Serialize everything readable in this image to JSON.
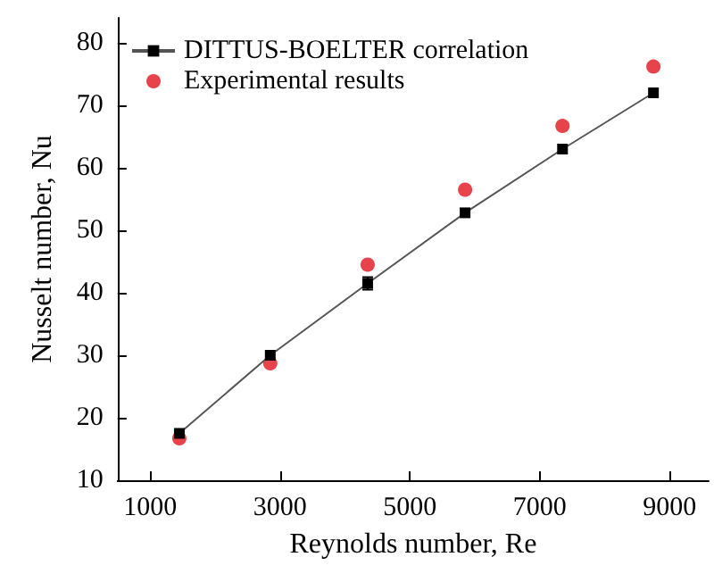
{
  "chart_data": {
    "type": "line",
    "xlabel": "Reynolds number, Re",
    "ylabel": "Nusselt number, Nu",
    "x": [
      1450,
      2850,
      4350,
      5850,
      7350,
      8750
    ],
    "series": [
      {
        "name": "DITTUS-BOELTER correlation",
        "color": "#000000",
        "marker": "square",
        "values": [
          17.5,
          30,
          41.5,
          52.8,
          63,
          72
        ],
        "errors": [
          null,
          null,
          1,
          null,
          null,
          null
        ]
      },
      {
        "name": "Experimental results",
        "type": "scatter",
        "color": "#e0141e",
        "marker": "circle",
        "values": [
          16.7,
          28.7,
          44.5,
          56.5,
          66.7,
          76.2
        ]
      }
    ],
    "xlim": [
      500,
      9600
    ],
    "xticks": [
      1000,
      3000,
      5000,
      7000,
      9000
    ],
    "ylim": [
      10,
      84
    ],
    "yticks": [
      10,
      20,
      30,
      40,
      50,
      60,
      70,
      80
    ],
    "grid": false,
    "legend": "top left"
  }
}
